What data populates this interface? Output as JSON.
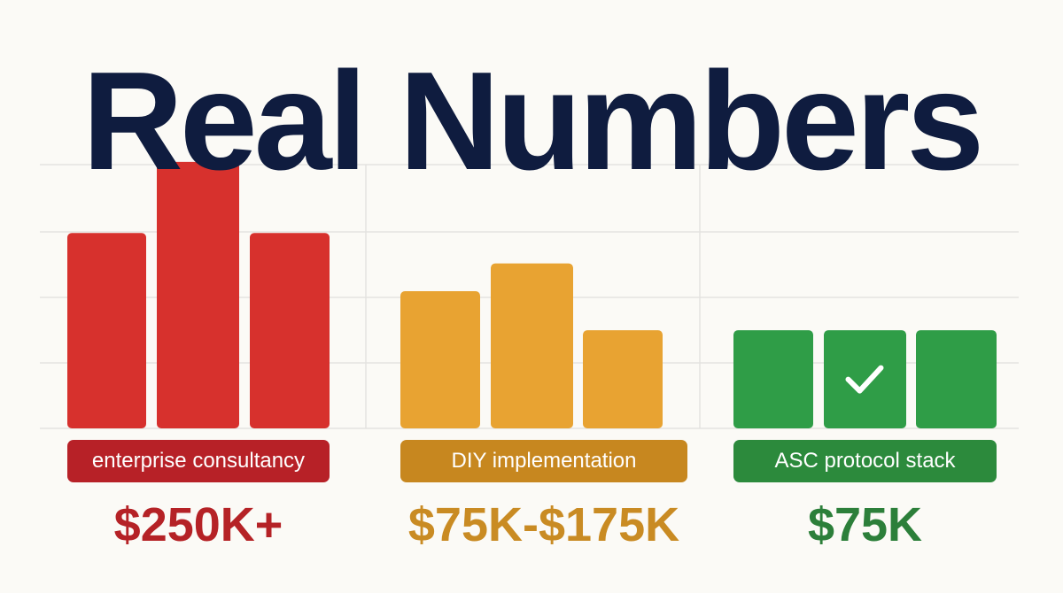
{
  "page": {
    "title": "Real Numbers",
    "title_color": "#0f1c3f",
    "background": "#fbfaf6",
    "grid_color": "#e4e3e0"
  },
  "chart_data": {
    "type": "bar",
    "title": "Real Numbers",
    "grid": true,
    "ylim": [
      0,
      315
    ],
    "groups": [
      {
        "label": "enterprise consultancy",
        "cost": "$250K+",
        "color": "#d7312d",
        "label_bg": "#b72127",
        "cost_color": "#b52226",
        "values": [
          225,
          307,
          225
        ],
        "checkmark_bar": null
      },
      {
        "label": "DIY implementation",
        "cost": "$75K-$175K",
        "color": "#e8a332",
        "label_bg": "#c7871f",
        "cost_color": "#c98b23",
        "values": [
          158,
          190,
          113
        ],
        "checkmark_bar": null
      },
      {
        "label": "ASC protocol stack",
        "cost": "$75K",
        "color": "#2f9d47",
        "label_bg": "#2c8a3c",
        "cost_color": "#2c7f3a",
        "values": [
          113,
          113,
          113
        ],
        "checkmark_bar": 1
      }
    ]
  }
}
